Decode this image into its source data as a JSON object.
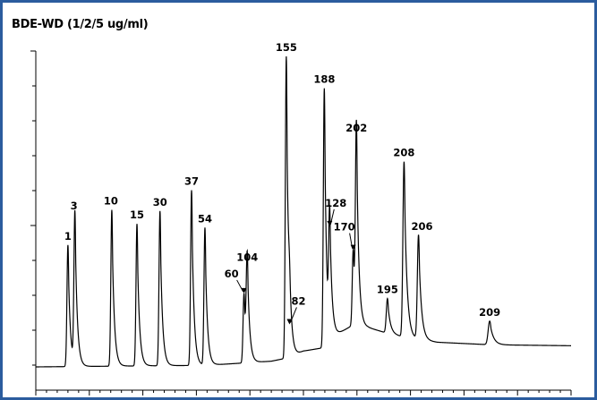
{
  "title": "BDE-WD (1/2/5 ug/ml)",
  "chart_data": {
    "type": "line",
    "title": "BDE-WD (1/2/5 ug/ml)",
    "xlabel": "",
    "ylabel": "",
    "grid": false,
    "x_range": [
      0,
      100
    ],
    "y_range": [
      0,
      100
    ],
    "line_color": "#000000",
    "peaks": [
      {
        "label": "1",
        "x": 6.0,
        "height": 38.5,
        "width": 0.25
      },
      {
        "label": "3",
        "x": 7.3,
        "height": 48.0,
        "width": 0.25
      },
      {
        "label": "10",
        "x": 14.2,
        "height": 49.5,
        "width": 0.25
      },
      {
        "label": "15",
        "x": 18.9,
        "height": 45.0,
        "width": 0.25
      },
      {
        "label": "30",
        "x": 23.2,
        "height": 49.0,
        "width": 0.25
      },
      {
        "label": "37",
        "x": 29.1,
        "height": 55.5,
        "width": 0.25
      },
      {
        "label": "54",
        "x": 31.6,
        "height": 43.5,
        "width": 0.25
      },
      {
        "label": "60",
        "x": 38.9,
        "height": 22.0,
        "width": 0.25
      },
      {
        "label": "104",
        "x": 39.5,
        "height": 30.5,
        "width": 0.25
      },
      {
        "label": "155",
        "x": 46.8,
        "height": 95.5,
        "width": 0.25
      },
      {
        "label": "82",
        "x": 47.4,
        "height": 10.5,
        "width": 0.25
      },
      {
        "label": "188",
        "x": 53.9,
        "height": 82.0,
        "width": 0.25
      },
      {
        "label": "128",
        "x": 54.9,
        "height": 36.0,
        "width": 0.25
      },
      {
        "label": "170",
        "x": 59.3,
        "height": 24.0,
        "width": 0.25
      },
      {
        "label": "202",
        "x": 59.9,
        "height": 60.0,
        "width": 0.25
      },
      {
        "label": "195",
        "x": 65.7,
        "height": 11.0,
        "width": 0.3
      },
      {
        "label": "208",
        "x": 68.8,
        "height": 55.5,
        "width": 0.3
      },
      {
        "label": "206",
        "x": 71.5,
        "height": 33.0,
        "width": 0.3
      },
      {
        "label": "209",
        "x": 84.8,
        "height": 7.5,
        "width": 0.4
      }
    ],
    "baseline": [
      {
        "x": 0,
        "y": 0.0
      },
      {
        "x": 32,
        "y": 0.5
      },
      {
        "x": 44,
        "y": 1.8
      },
      {
        "x": 47.5,
        "y": 3.0
      },
      {
        "x": 50,
        "y": 5.0
      },
      {
        "x": 53.5,
        "y": 6.0
      },
      {
        "x": 54.5,
        "y": 6.5
      },
      {
        "x": 55,
        "y": 9.0
      },
      {
        "x": 59,
        "y": 13.0
      },
      {
        "x": 62,
        "y": 12.5
      },
      {
        "x": 66,
        "y": 10.5
      },
      {
        "x": 70,
        "y": 9.0
      },
      {
        "x": 75,
        "y": 7.8
      },
      {
        "x": 85,
        "y": 7.0
      },
      {
        "x": 100,
        "y": 6.7
      }
    ]
  }
}
